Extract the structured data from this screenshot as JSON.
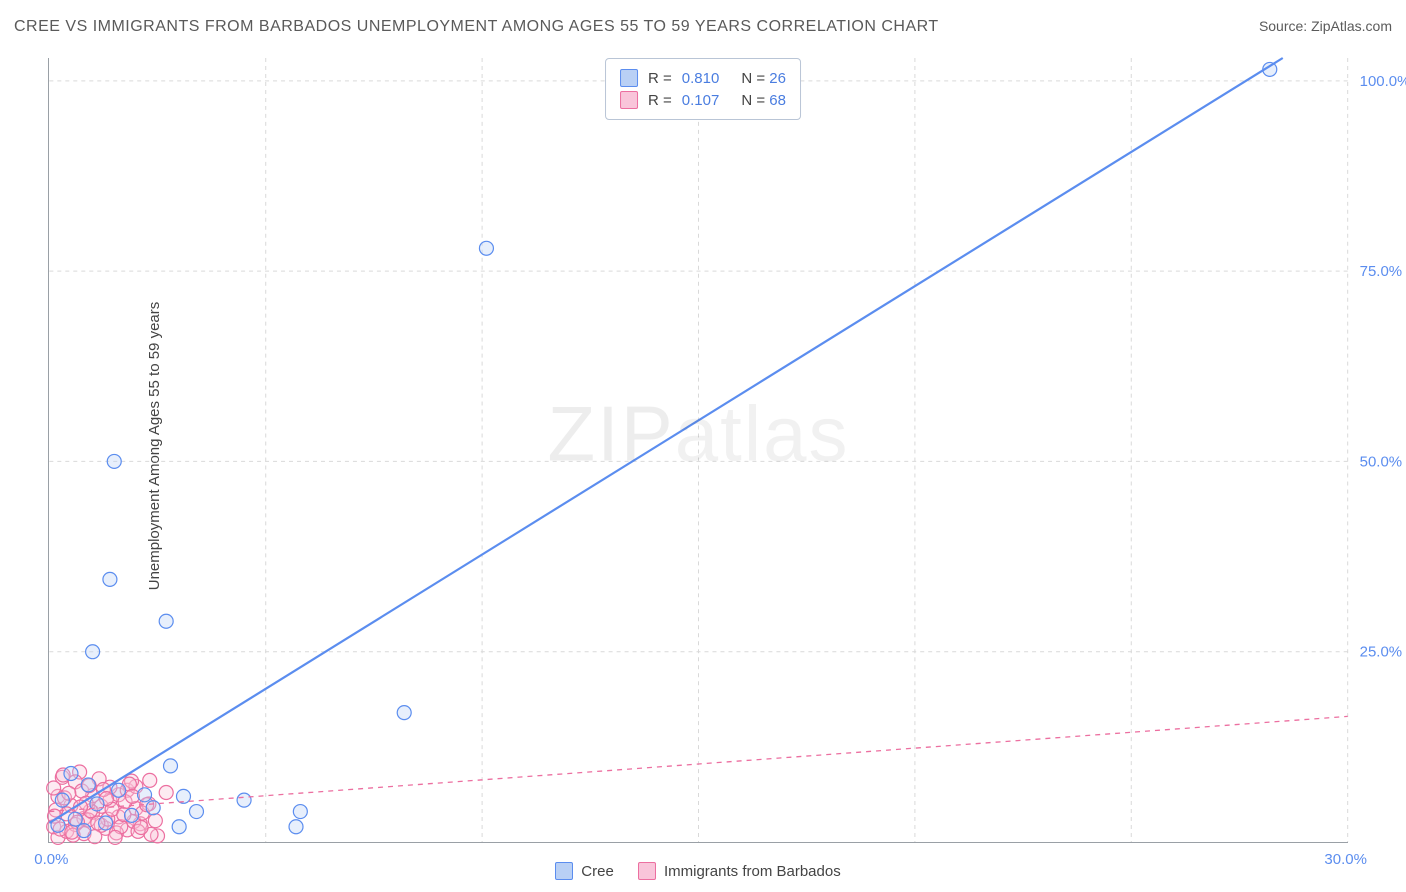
{
  "title": "CREE VS IMMIGRANTS FROM BARBADOS UNEMPLOYMENT AMONG AGES 55 TO 59 YEARS CORRELATION CHART",
  "source_label": "Source:",
  "source_name": "ZipAtlas.com",
  "y_axis_label": "Unemployment Among Ages 55 to 59 years",
  "watermark_1": "ZIP",
  "watermark_2": "atlas",
  "chart": {
    "type": "scatter",
    "xlim": [
      0,
      30
    ],
    "ylim": [
      0,
      103
    ],
    "x_ticks": [
      0,
      5,
      10,
      15,
      20,
      25,
      30
    ],
    "x_tick_labels_shown": {
      "0": "0.0%",
      "30": "30.0%"
    },
    "y_ticks": [
      25,
      50,
      75,
      100
    ],
    "y_tick_labels": [
      "25.0%",
      "50.0%",
      "75.0%",
      "100.0%"
    ],
    "background": "#ffffff",
    "grid_color": "#d9d9d9",
    "axis_color": "#9aa0a6",
    "tick_label_color": "#5b8def",
    "marker_radius": 7,
    "marker_stroke_width": 1.2,
    "marker_fill_opacity": 0.35,
    "series": [
      {
        "name": "Cree",
        "color_stroke": "#5b8def",
        "color_fill": "#b9d0f5",
        "R": "0.810",
        "N": "26",
        "trend": {
          "x1": 0,
          "y1": 2.5,
          "x2": 28.5,
          "y2": 103,
          "width": 2.2,
          "dash": "none"
        },
        "points": [
          [
            28.2,
            101.5
          ],
          [
            10.1,
            78.0
          ],
          [
            1.5,
            50.0
          ],
          [
            1.4,
            34.5
          ],
          [
            2.7,
            29.0
          ],
          [
            1.0,
            25.0
          ],
          [
            8.2,
            17.0
          ],
          [
            2.8,
            10.0
          ],
          [
            0.5,
            9.0
          ],
          [
            0.9,
            7.5
          ],
          [
            1.6,
            6.8
          ],
          [
            2.2,
            6.2
          ],
          [
            3.1,
            6.0
          ],
          [
            0.3,
            5.5
          ],
          [
            1.1,
            5.0
          ],
          [
            4.5,
            5.5
          ],
          [
            3.4,
            4.0
          ],
          [
            5.8,
            4.0
          ],
          [
            5.7,
            2.0
          ],
          [
            3.0,
            2.0
          ],
          [
            1.3,
            2.5
          ],
          [
            0.6,
            3.0
          ],
          [
            0.2,
            2.2
          ],
          [
            0.8,
            1.5
          ],
          [
            1.9,
            3.5
          ],
          [
            2.4,
            4.5
          ]
        ]
      },
      {
        "name": "Immigrants from Barbados",
        "color_stroke": "#ec6fa0",
        "color_fill": "#f9c5da",
        "R": "0.107",
        "N": "68",
        "trend": {
          "x1": 0,
          "y1": 4.0,
          "x2": 30,
          "y2": 16.5,
          "width": 1.3,
          "dash": "5 5"
        },
        "points": [
          [
            0.2,
            0.6
          ],
          [
            0.4,
            1.4
          ],
          [
            0.6,
            2.3
          ],
          [
            0.8,
            3.1
          ],
          [
            1.0,
            3.9
          ],
          [
            1.2,
            4.7
          ],
          [
            1.4,
            5.5
          ],
          [
            1.6,
            6.2
          ],
          [
            1.8,
            6.8
          ],
          [
            2.0,
            7.3
          ],
          [
            0.3,
            8.5
          ],
          [
            0.7,
            9.2
          ],
          [
            1.9,
            8.0
          ],
          [
            0.1,
            2.0
          ],
          [
            0.5,
            4.8
          ],
          [
            0.9,
            2.9
          ],
          [
            1.3,
            1.8
          ],
          [
            2.1,
            2.4
          ],
          [
            2.3,
            5.0
          ],
          [
            2.5,
            0.8
          ],
          [
            2.7,
            6.5
          ],
          [
            0.2,
            6.0
          ],
          [
            0.4,
            3.7
          ],
          [
            0.6,
            7.9
          ],
          [
            0.8,
            1.1
          ],
          [
            1.0,
            6.1
          ],
          [
            1.2,
            2.2
          ],
          [
            1.4,
            7.2
          ],
          [
            1.6,
            3.3
          ],
          [
            1.8,
            1.6
          ],
          [
            2.0,
            4.4
          ],
          [
            0.15,
            4.2
          ],
          [
            0.35,
            5.8
          ],
          [
            0.55,
            0.9
          ],
          [
            0.75,
            6.7
          ],
          [
            0.95,
            4.1
          ],
          [
            1.15,
            8.3
          ],
          [
            1.35,
            3.0
          ],
          [
            1.55,
            1.2
          ],
          [
            1.75,
            5.3
          ],
          [
            1.95,
            2.7
          ],
          [
            2.15,
            3.8
          ],
          [
            2.35,
            1.0
          ],
          [
            0.1,
            7.1
          ],
          [
            0.25,
            1.7
          ],
          [
            0.45,
            6.4
          ],
          [
            0.65,
            2.6
          ],
          [
            0.85,
            5.1
          ],
          [
            1.05,
            0.7
          ],
          [
            1.25,
            6.9
          ],
          [
            1.45,
            4.3
          ],
          [
            1.65,
            2.0
          ],
          [
            1.85,
            7.6
          ],
          [
            2.05,
            1.4
          ],
          [
            2.25,
            4.9
          ],
          [
            2.45,
            2.8
          ],
          [
            0.12,
            3.4
          ],
          [
            0.32,
            8.8
          ],
          [
            0.52,
            1.3
          ],
          [
            0.72,
            4.6
          ],
          [
            0.92,
            7.4
          ],
          [
            1.12,
            2.5
          ],
          [
            1.32,
            5.7
          ],
          [
            1.52,
            0.6
          ],
          [
            1.72,
            3.6
          ],
          [
            1.92,
            6.0
          ],
          [
            2.12,
            1.9
          ],
          [
            2.32,
            8.1
          ]
        ]
      }
    ]
  },
  "legend_bottom": {
    "items": [
      {
        "label": "Cree",
        "stroke": "#5b8def",
        "fill": "#b9d0f5"
      },
      {
        "label": "Immigrants from Barbados",
        "stroke": "#ec6fa0",
        "fill": "#f9c5da"
      }
    ]
  }
}
